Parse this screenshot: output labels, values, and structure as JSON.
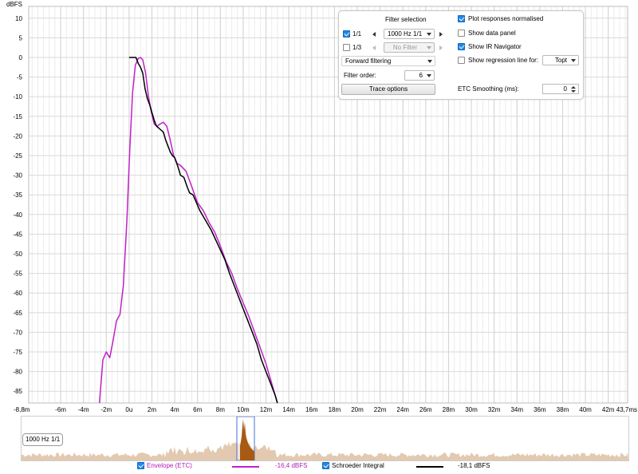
{
  "chart_data": {
    "type": "line",
    "ylabel": "dBFS",
    "ylim": [
      -88,
      13
    ],
    "xlim": [
      -8.8,
      43.7
    ],
    "y_ticks": [
      10,
      5,
      0,
      -5,
      -10,
      -15,
      -20,
      -25,
      -30,
      -35,
      -40,
      -45,
      -50,
      -55,
      -60,
      -65,
      -70,
      -75,
      -80,
      -85
    ],
    "x_ticks": [
      {
        "v": -8.8,
        "label": "-8,8m"
      },
      {
        "v": -6,
        "label": "-6m"
      },
      {
        "v": -4,
        "label": "-4m"
      },
      {
        "v": -2,
        "label": "-2m"
      },
      {
        "v": 0,
        "label": "0u"
      },
      {
        "v": 2,
        "label": "2m"
      },
      {
        "v": 4,
        "label": "4m"
      },
      {
        "v": 6,
        "label": "6m"
      },
      {
        "v": 8,
        "label": "8m"
      },
      {
        "v": 10,
        "label": "10m"
      },
      {
        "v": 12,
        "label": "12m"
      },
      {
        "v": 14,
        "label": "14m"
      },
      {
        "v": 16,
        "label": "16m"
      },
      {
        "v": 18,
        "label": "18m"
      },
      {
        "v": 20,
        "label": "20m"
      },
      {
        "v": 22,
        "label": "22m"
      },
      {
        "v": 24,
        "label": "24m"
      },
      {
        "v": 26,
        "label": "26m"
      },
      {
        "v": 28,
        "label": "28m"
      },
      {
        "v": 30,
        "label": "30m"
      },
      {
        "v": 32,
        "label": "32m"
      },
      {
        "v": 34,
        "label": "34m"
      },
      {
        "v": 36,
        "label": "36m"
      },
      {
        "v": 38,
        "label": "38m"
      },
      {
        "v": 40,
        "label": "40m"
      },
      {
        "v": 42,
        "label": "42m"
      },
      {
        "v": 43.7,
        "label": "43,7ms"
      }
    ],
    "series": [
      {
        "name": "Envelope (ETC)",
        "color": "#c020c8",
        "points": [
          [
            -2.6,
            -88
          ],
          [
            -2.3,
            -77
          ],
          [
            -2.0,
            -75
          ],
          [
            -1.7,
            -76.5
          ],
          [
            -1.4,
            -72
          ],
          [
            -1.1,
            -67
          ],
          [
            -0.8,
            -65.5
          ],
          [
            -0.5,
            -58
          ],
          [
            -0.2,
            -42
          ],
          [
            0.05,
            -24
          ],
          [
            0.3,
            -9
          ],
          [
            0.55,
            -2
          ],
          [
            0.8,
            -0.3
          ],
          [
            1.0,
            0
          ],
          [
            1.2,
            -0.6
          ],
          [
            1.45,
            -4
          ],
          [
            1.7,
            -10
          ],
          [
            1.95,
            -14
          ],
          [
            2.2,
            -17
          ],
          [
            2.45,
            -17.5
          ],
          [
            2.7,
            -17
          ],
          [
            3.0,
            -16.5
          ],
          [
            3.3,
            -17.5
          ],
          [
            3.6,
            -21
          ],
          [
            3.9,
            -25
          ],
          [
            4.2,
            -27
          ],
          [
            4.5,
            -27.5
          ],
          [
            5.0,
            -29
          ],
          [
            5.5,
            -33
          ],
          [
            6.0,
            -37
          ],
          [
            6.5,
            -39
          ],
          [
            7.0,
            -42
          ],
          [
            7.5,
            -44.5
          ],
          [
            8.0,
            -48
          ],
          [
            8.5,
            -52
          ],
          [
            9.0,
            -55
          ],
          [
            9.5,
            -59
          ],
          [
            10.0,
            -62.5
          ],
          [
            10.5,
            -66
          ],
          [
            11.0,
            -70
          ],
          [
            11.5,
            -74
          ],
          [
            12.0,
            -78
          ],
          [
            12.5,
            -83
          ],
          [
            13.0,
            -88
          ]
        ]
      },
      {
        "name": "Schroeder Integral",
        "color": "#000000",
        "points": [
          [
            0.0,
            0
          ],
          [
            0.6,
            0
          ],
          [
            0.8,
            -1.5
          ],
          [
            1.0,
            -2.5
          ],
          [
            1.2,
            -4
          ],
          [
            1.4,
            -8
          ],
          [
            1.6,
            -10.5
          ],
          [
            1.8,
            -12
          ],
          [
            2.0,
            -14
          ],
          [
            2.2,
            -16
          ],
          [
            2.4,
            -17.5
          ],
          [
            2.6,
            -18
          ],
          [
            2.8,
            -18.5
          ],
          [
            3.0,
            -19
          ],
          [
            3.2,
            -21
          ],
          [
            3.4,
            -22.5
          ],
          [
            3.6,
            -24
          ],
          [
            3.8,
            -25
          ],
          [
            4.0,
            -25.5
          ],
          [
            4.3,
            -28
          ],
          [
            4.5,
            -30
          ],
          [
            4.8,
            -30.5
          ],
          [
            5.1,
            -33
          ],
          [
            5.3,
            -34.5
          ],
          [
            5.6,
            -35
          ],
          [
            5.9,
            -37
          ],
          [
            6.2,
            -39
          ],
          [
            6.5,
            -40.5
          ],
          [
            6.8,
            -42
          ],
          [
            7.2,
            -44
          ],
          [
            7.6,
            -46.5
          ],
          [
            8.0,
            -49
          ],
          [
            8.4,
            -51.5
          ],
          [
            8.8,
            -55
          ],
          [
            9.2,
            -58
          ],
          [
            9.6,
            -61
          ],
          [
            10.0,
            -64
          ],
          [
            10.4,
            -67
          ],
          [
            10.8,
            -70
          ],
          [
            11.2,
            -73
          ],
          [
            11.6,
            -77
          ],
          [
            12.0,
            -80
          ],
          [
            12.4,
            -83
          ],
          [
            12.8,
            -86
          ],
          [
            13.0,
            -88
          ]
        ]
      }
    ]
  },
  "axis": {
    "y_unit": "dBFS"
  },
  "controls": {
    "filter_selection_label": "Filter selection",
    "row1_check_label": "1/1",
    "row1_combo": "1000 Hz 1/1",
    "row2_check_label": "1/3",
    "row2_combo": "No Filter",
    "forward_filtering": "Forward filtering",
    "filter_order_label": "Filter order:",
    "filter_order_value": "6",
    "trace_options": "Trace options",
    "plot_normalised": "Plot responses normalised",
    "show_data_panel": "Show data panel",
    "show_ir_navigator": "Show IR Navigator",
    "show_regression": "Show regression line for:",
    "regression_value": "Topt",
    "etc_smoothing_label": "ETC Smoothing (ms):",
    "etc_smoothing_value": "0"
  },
  "navigator": {
    "label": "1000 Hz 1/1"
  },
  "legend": {
    "envelope_label": "Envelope (ETC)",
    "envelope_value": "-16,4 dBFS",
    "schroeder_label": "Schroeder Integral",
    "schroeder_value": "-18,1 dBFS"
  }
}
